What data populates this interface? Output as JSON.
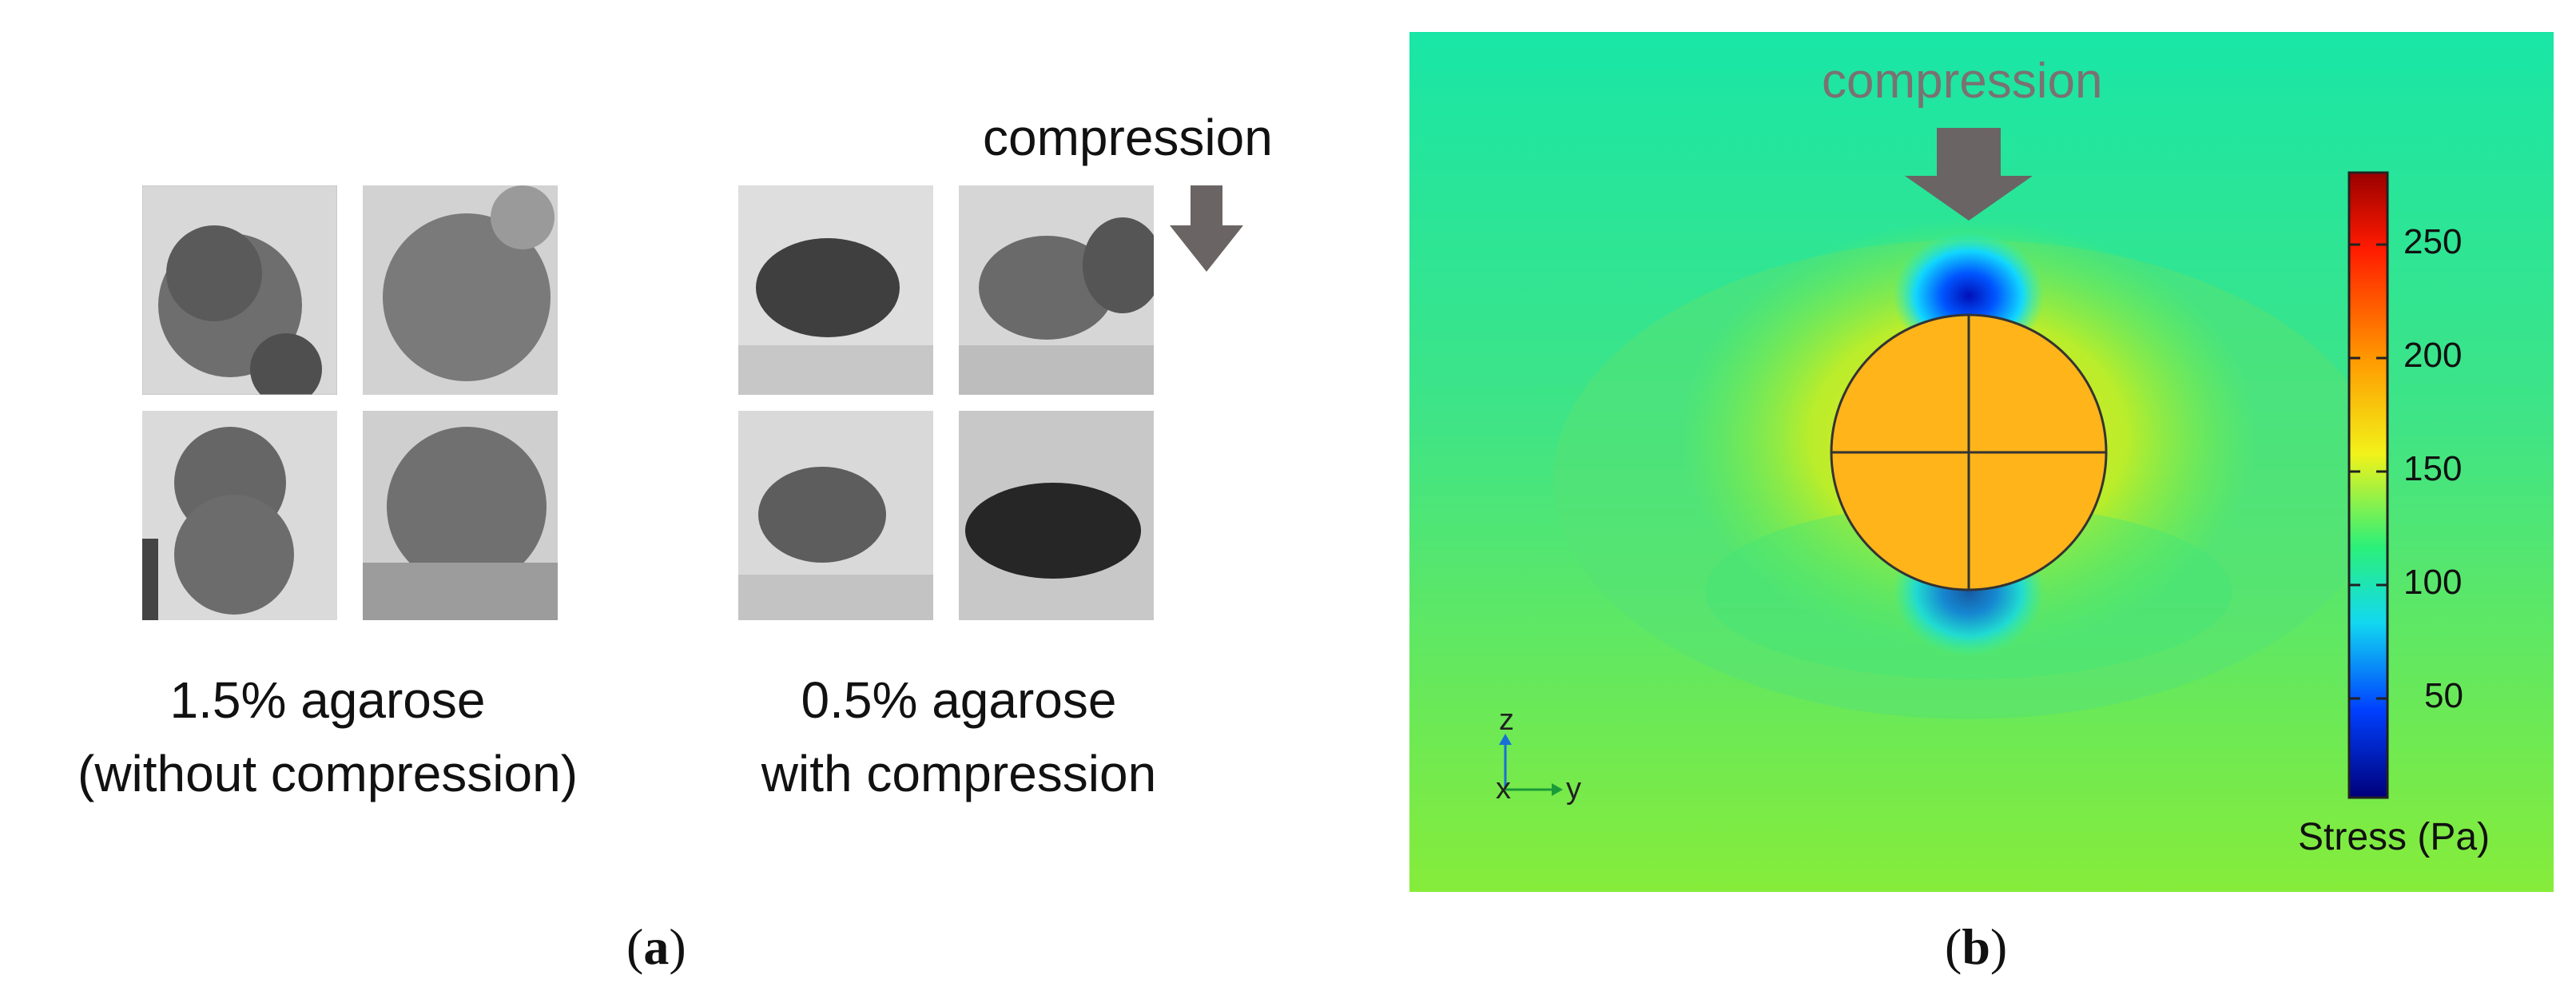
{
  "panel_a": {
    "label_open": "(",
    "label_letter": "a",
    "label_close": ")",
    "group_left_caption_line1": "1.5% agarose",
    "group_left_caption_line2": "(without compression)",
    "group_right_caption_line1": "0.5% agarose",
    "group_right_caption_line2": "with compression",
    "compression_label": "compression"
  },
  "panel_b": {
    "label_open": "(",
    "label_letter": "b",
    "label_close": ")",
    "compression_label": "compression",
    "colorbar_title": "Stress (Pa)",
    "colorbar_ticks": [
      "250",
      "200",
      "150",
      "100",
      "50"
    ],
    "axis_z": "z",
    "axis_x": "x",
    "axis_y": "y",
    "colors": {
      "background_field": "#2ee08f",
      "spheroid_fill": "#ffb31a",
      "arrow": "#6b6464"
    }
  }
}
